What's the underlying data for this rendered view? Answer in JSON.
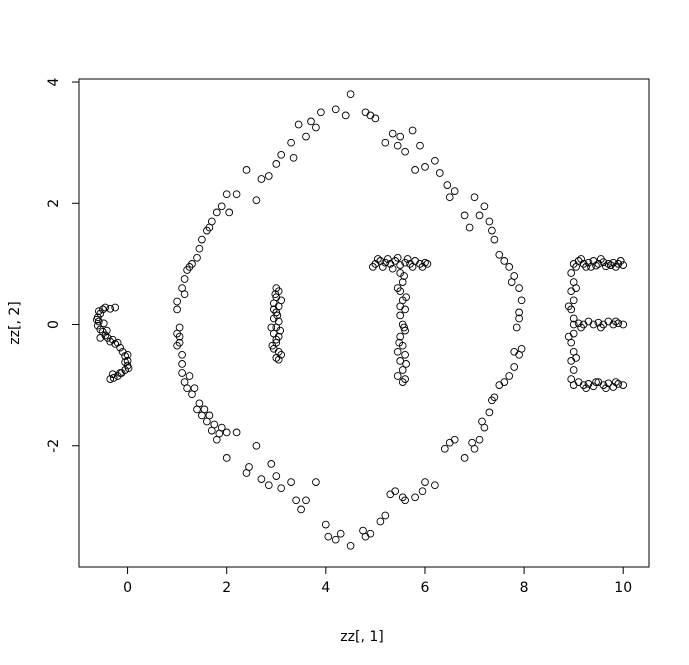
{
  "chart_data": {
    "type": "scatter",
    "title": "",
    "xlabel": "zz[, 1]",
    "ylabel": "zz[, 2]",
    "xlim": [
      -0.98,
      10.52
    ],
    "ylim": [
      -4.0,
      4.05
    ],
    "xticks": [
      0,
      2,
      4,
      6,
      8,
      10
    ],
    "xtick_labels": [
      "0",
      "2",
      "4",
      "6",
      "8",
      "10"
    ],
    "yticks": [
      -2,
      0,
      2,
      4
    ],
    "ytick_labels": [
      "-2",
      "0",
      "2",
      "4"
    ],
    "grid": false,
    "legend": "none",
    "marker": "open-circle",
    "marker_color": "#000000",
    "series": [
      {
        "points": [
          [
            -0.5,
            0.25
          ],
          [
            -0.45,
            0.28
          ],
          [
            -0.35,
            0.26
          ],
          [
            -0.25,
            0.28
          ],
          [
            -0.55,
            0.18
          ],
          [
            -0.6,
            0.12
          ],
          [
            -0.58,
            0.05
          ],
          [
            -0.6,
            -0.02
          ],
          [
            -0.55,
            -0.08
          ],
          [
            -0.5,
            -0.12
          ],
          [
            -0.45,
            -0.18
          ],
          [
            -0.4,
            -0.22
          ],
          [
            -0.35,
            -0.28
          ],
          [
            -0.25,
            -0.32
          ],
          [
            -0.15,
            -0.38
          ],
          [
            -0.1,
            -0.45
          ],
          [
            -0.05,
            -0.52
          ],
          [
            0.0,
            -0.6
          ],
          [
            0.0,
            -0.68
          ],
          [
            -0.05,
            -0.75
          ],
          [
            -0.12,
            -0.8
          ],
          [
            -0.2,
            -0.85
          ],
          [
            -0.28,
            -0.88
          ],
          [
            -0.35,
            -0.9
          ],
          [
            -0.62,
            0.08
          ],
          [
            -0.48,
            0.02
          ],
          [
            -0.3,
            -0.25
          ],
          [
            0.0,
            -0.5
          ],
          [
            -0.55,
            -0.22
          ],
          [
            -0.2,
            -0.3
          ],
          [
            -0.58,
            0.22
          ],
          [
            -0.42,
            -0.1
          ],
          [
            -0.05,
            -0.62
          ],
          [
            0.02,
            -0.72
          ],
          [
            -0.15,
            -0.8
          ],
          [
            -0.3,
            -0.82
          ],
          [
            1.0,
            0.38
          ],
          [
            1.0,
            0.25
          ],
          [
            1.05,
            -0.05
          ],
          [
            1.0,
            -0.15
          ],
          [
            1.05,
            -0.3
          ],
          [
            1.0,
            -0.35
          ],
          [
            1.1,
            -0.5
          ],
          [
            1.1,
            -0.65
          ],
          [
            1.1,
            -0.8
          ],
          [
            1.15,
            -0.95
          ],
          [
            1.2,
            -1.05
          ],
          [
            1.3,
            -1.15
          ],
          [
            1.4,
            -1.4
          ],
          [
            1.5,
            -1.5
          ],
          [
            1.6,
            -1.6
          ],
          [
            1.7,
            -1.75
          ],
          [
            1.8,
            -1.9
          ],
          [
            2.0,
            -1.78
          ],
          [
            2.0,
            -2.2
          ],
          [
            1.1,
            0.6
          ],
          [
            1.15,
            0.75
          ],
          [
            1.2,
            0.9
          ],
          [
            1.3,
            1.0
          ],
          [
            1.4,
            1.1
          ],
          [
            1.5,
            1.4
          ],
          [
            1.6,
            1.55
          ],
          [
            1.7,
            1.7
          ],
          [
            1.8,
            1.85
          ],
          [
            2.0,
            2.15
          ],
          [
            2.2,
            2.15
          ],
          [
            2.4,
            2.55
          ],
          [
            2.6,
            2.05
          ],
          [
            2.7,
            2.4
          ],
          [
            2.85,
            2.45
          ],
          [
            3.0,
            2.65
          ],
          [
            3.1,
            2.8
          ],
          [
            3.3,
            3.0
          ],
          [
            3.45,
            3.3
          ],
          [
            3.6,
            3.1
          ],
          [
            3.7,
            3.35
          ],
          [
            3.9,
            3.5
          ],
          [
            4.2,
            3.55
          ],
          [
            4.4,
            3.45
          ],
          [
            4.5,
            3.8
          ],
          [
            4.8,
            3.5
          ],
          [
            5.0,
            3.4
          ],
          [
            5.2,
            3.0
          ],
          [
            5.35,
            3.15
          ],
          [
            5.5,
            3.1
          ],
          [
            5.6,
            2.85
          ],
          [
            5.75,
            3.2
          ],
          [
            5.8,
            2.55
          ],
          [
            6.0,
            2.6
          ],
          [
            6.2,
            2.7
          ],
          [
            6.3,
            2.5
          ],
          [
            6.5,
            2.1
          ],
          [
            6.6,
            2.2
          ],
          [
            6.8,
            1.8
          ],
          [
            7.0,
            2.1
          ],
          [
            7.2,
            1.95
          ],
          [
            7.3,
            1.7
          ],
          [
            7.4,
            1.4
          ],
          [
            7.5,
            1.15
          ],
          [
            7.7,
            0.95
          ],
          [
            7.8,
            0.8
          ],
          [
            7.9,
            0.6
          ],
          [
            7.95,
            0.4
          ],
          [
            7.9,
            0.2
          ],
          [
            7.9,
            0.1
          ],
          [
            7.95,
            -0.4
          ],
          [
            7.9,
            -0.5
          ],
          [
            7.8,
            -0.7
          ],
          [
            7.7,
            -0.85
          ],
          [
            7.5,
            -1.0
          ],
          [
            7.4,
            -1.2
          ],
          [
            7.3,
            -1.45
          ],
          [
            7.2,
            -1.7
          ],
          [
            7.1,
            -1.9
          ],
          [
            7.0,
            -2.05
          ],
          [
            6.8,
            -2.2
          ],
          [
            6.6,
            -1.9
          ],
          [
            6.4,
            -2.05
          ],
          [
            6.2,
            -2.65
          ],
          [
            6.0,
            -2.6
          ],
          [
            5.8,
            -2.85
          ],
          [
            5.6,
            -2.9
          ],
          [
            5.4,
            -2.75
          ],
          [
            5.2,
            -3.15
          ],
          [
            5.1,
            -3.25
          ],
          [
            4.9,
            -3.45
          ],
          [
            4.8,
            -3.5
          ],
          [
            4.5,
            -3.65
          ],
          [
            4.3,
            -3.45
          ],
          [
            4.2,
            -3.55
          ],
          [
            4.0,
            -3.3
          ],
          [
            3.8,
            -2.6
          ],
          [
            3.6,
            -2.9
          ],
          [
            3.5,
            -3.05
          ],
          [
            3.3,
            -2.6
          ],
          [
            3.1,
            -2.7
          ],
          [
            3.0,
            -2.5
          ],
          [
            2.9,
            -2.3
          ],
          [
            2.7,
            -2.55
          ],
          [
            2.6,
            -2.0
          ],
          [
            2.4,
            -2.45
          ],
          [
            1.9,
            -1.7
          ],
          [
            1.75,
            -1.65
          ],
          [
            1.55,
            -1.4
          ],
          [
            1.35,
            -1.05
          ],
          [
            1.25,
            -0.85
          ],
          [
            1.05,
            -0.2
          ],
          [
            1.15,
            0.5
          ],
          [
            1.25,
            0.95
          ],
          [
            1.45,
            1.25
          ],
          [
            1.65,
            1.6
          ],
          [
            1.9,
            1.95
          ],
          [
            2.05,
            1.85
          ],
          [
            3.35,
            2.75
          ],
          [
            3.8,
            3.25
          ],
          [
            4.9,
            3.45
          ],
          [
            5.45,
            2.95
          ],
          [
            5.9,
            2.95
          ],
          [
            6.45,
            2.3
          ],
          [
            6.9,
            1.6
          ],
          [
            7.1,
            1.8
          ],
          [
            7.35,
            1.55
          ],
          [
            7.6,
            1.05
          ],
          [
            7.75,
            0.7
          ],
          [
            7.85,
            -0.05
          ],
          [
            7.8,
            -0.45
          ],
          [
            7.6,
            -0.95
          ],
          [
            7.35,
            -1.25
          ],
          [
            7.15,
            -1.6
          ],
          [
            6.95,
            -1.95
          ],
          [
            6.5,
            -1.95
          ],
          [
            5.95,
            -2.75
          ],
          [
            5.55,
            -2.85
          ],
          [
            5.3,
            -2.8
          ],
          [
            4.75,
            -3.4
          ],
          [
            4.05,
            -3.5
          ],
          [
            3.4,
            -2.9
          ],
          [
            2.85,
            -2.65
          ],
          [
            2.45,
            -2.35
          ],
          [
            2.2,
            -1.78
          ],
          [
            1.85,
            -1.8
          ],
          [
            1.65,
            -1.5
          ],
          [
            1.45,
            -1.3
          ],
          [
            3.0,
            0.6
          ],
          [
            3.05,
            0.55
          ],
          [
            3.0,
            0.45
          ],
          [
            2.95,
            0.35
          ],
          [
            3.05,
            0.3
          ],
          [
            3.0,
            0.2
          ],
          [
            2.95,
            0.1
          ],
          [
            3.05,
            0.05
          ],
          [
            3.0,
            -0.05
          ],
          [
            2.95,
            -0.15
          ],
          [
            3.05,
            -0.2
          ],
          [
            3.0,
            -0.3
          ],
          [
            2.95,
            -0.4
          ],
          [
            3.05,
            -0.45
          ],
          [
            3.0,
            -0.55
          ],
          [
            3.1,
            -0.5
          ],
          [
            2.98,
            0.5
          ],
          [
            3.02,
            0.15
          ],
          [
            3.08,
            -0.1
          ],
          [
            2.92,
            -0.35
          ],
          [
            2.95,
            0.25
          ],
          [
            3.1,
            0.4
          ],
          [
            3.0,
            -0.25
          ],
          [
            2.9,
            -0.05
          ],
          [
            3.05,
            -0.58
          ],
          [
            5.0,
            1.0
          ],
          [
            5.1,
            1.05
          ],
          [
            5.2,
            1.02
          ],
          [
            5.3,
            1.0
          ],
          [
            5.4,
            1.05
          ],
          [
            5.5,
            0.98
          ],
          [
            5.6,
            1.02
          ],
          [
            5.7,
            1.0
          ],
          [
            5.8,
            1.05
          ],
          [
            5.9,
            1.0
          ],
          [
            6.0,
            1.02
          ],
          [
            4.95,
            0.95
          ],
          [
            5.15,
            0.95
          ],
          [
            5.35,
            0.92
          ],
          [
            5.75,
            0.95
          ],
          [
            5.95,
            0.95
          ],
          [
            5.5,
            0.85
          ],
          [
            5.55,
            0.7
          ],
          [
            5.5,
            0.55
          ],
          [
            5.55,
            0.4
          ],
          [
            5.6,
            0.25
          ],
          [
            5.5,
            0.15
          ],
          [
            5.55,
            0.0
          ],
          [
            5.6,
            -0.1
          ],
          [
            5.5,
            -0.2
          ],
          [
            5.55,
            -0.35
          ],
          [
            5.6,
            -0.5
          ],
          [
            5.5,
            -0.6
          ],
          [
            5.55,
            -0.75
          ],
          [
            5.6,
            -0.9
          ],
          [
            5.55,
            -0.95
          ],
          [
            5.45,
            0.6
          ],
          [
            5.62,
            0.45
          ],
          [
            5.48,
            -0.3
          ],
          [
            5.62,
            -0.65
          ],
          [
            5.45,
            -0.85
          ],
          [
            5.58,
            0.8
          ],
          [
            5.5,
            0.3
          ],
          [
            5.58,
            -0.05
          ],
          [
            5.45,
            -0.45
          ],
          [
            5.25,
            1.08
          ],
          [
            5.65,
            1.08
          ],
          [
            6.05,
            1.0
          ],
          [
            5.05,
            1.08
          ],
          [
            5.45,
            1.1
          ],
          [
            9.0,
            1.0
          ],
          [
            9.1,
            1.05
          ],
          [
            9.2,
            1.0
          ],
          [
            9.3,
            1.02
          ],
          [
            9.4,
            1.05
          ],
          [
            9.5,
            1.0
          ],
          [
            9.6,
            1.03
          ],
          [
            9.7,
            1.0
          ],
          [
            9.8,
            1.02
          ],
          [
            9.9,
            1.0
          ],
          [
            10.0,
            0.98
          ],
          [
            9.05,
            0.95
          ],
          [
            9.25,
            0.95
          ],
          [
            9.45,
            0.97
          ],
          [
            9.65,
            0.96
          ],
          [
            9.85,
            0.95
          ],
          [
            8.95,
            0.85
          ],
          [
            9.0,
            0.7
          ],
          [
            8.95,
            0.55
          ],
          [
            9.0,
            0.4
          ],
          [
            8.95,
            0.25
          ],
          [
            9.0,
            0.1
          ],
          [
            9.0,
            0.0
          ],
          [
            9.1,
            0.02
          ],
          [
            9.2,
            0.0
          ],
          [
            9.3,
            0.05
          ],
          [
            9.4,
            0.0
          ],
          [
            9.5,
            0.03
          ],
          [
            9.6,
            0.0
          ],
          [
            9.7,
            0.05
          ],
          [
            9.8,
            0.0
          ],
          [
            9.9,
            0.02
          ],
          [
            10.0,
            0.0
          ],
          [
            9.0,
            -0.15
          ],
          [
            8.95,
            -0.3
          ],
          [
            9.0,
            -0.45
          ],
          [
            8.95,
            -0.6
          ],
          [
            9.0,
            -0.75
          ],
          [
            8.95,
            -0.9
          ],
          [
            9.0,
            -1.0
          ],
          [
            9.1,
            -0.95
          ],
          [
            9.2,
            -1.0
          ],
          [
            9.3,
            -0.98
          ],
          [
            9.4,
            -1.02
          ],
          [
            9.5,
            -0.95
          ],
          [
            9.6,
            -1.0
          ],
          [
            9.7,
            -0.97
          ],
          [
            9.8,
            -1.03
          ],
          [
            9.9,
            -0.98
          ],
          [
            10.0,
            -1.0
          ],
          [
            9.15,
            1.08
          ],
          [
            9.55,
            1.08
          ],
          [
            9.95,
            1.05
          ],
          [
            9.15,
            -0.05
          ],
          [
            9.55,
            -0.05
          ],
          [
            9.85,
            0.05
          ],
          [
            9.25,
            -1.05
          ],
          [
            9.65,
            -1.05
          ],
          [
            9.05,
            0.6
          ],
          [
            9.05,
            -0.55
          ],
          [
            8.9,
            0.3
          ],
          [
            8.9,
            -0.2
          ],
          [
            9.35,
            0.95
          ],
          [
            9.75,
            0.98
          ],
          [
            9.45,
            -0.95
          ],
          [
            9.85,
            -0.95
          ]
        ]
      }
    ]
  }
}
